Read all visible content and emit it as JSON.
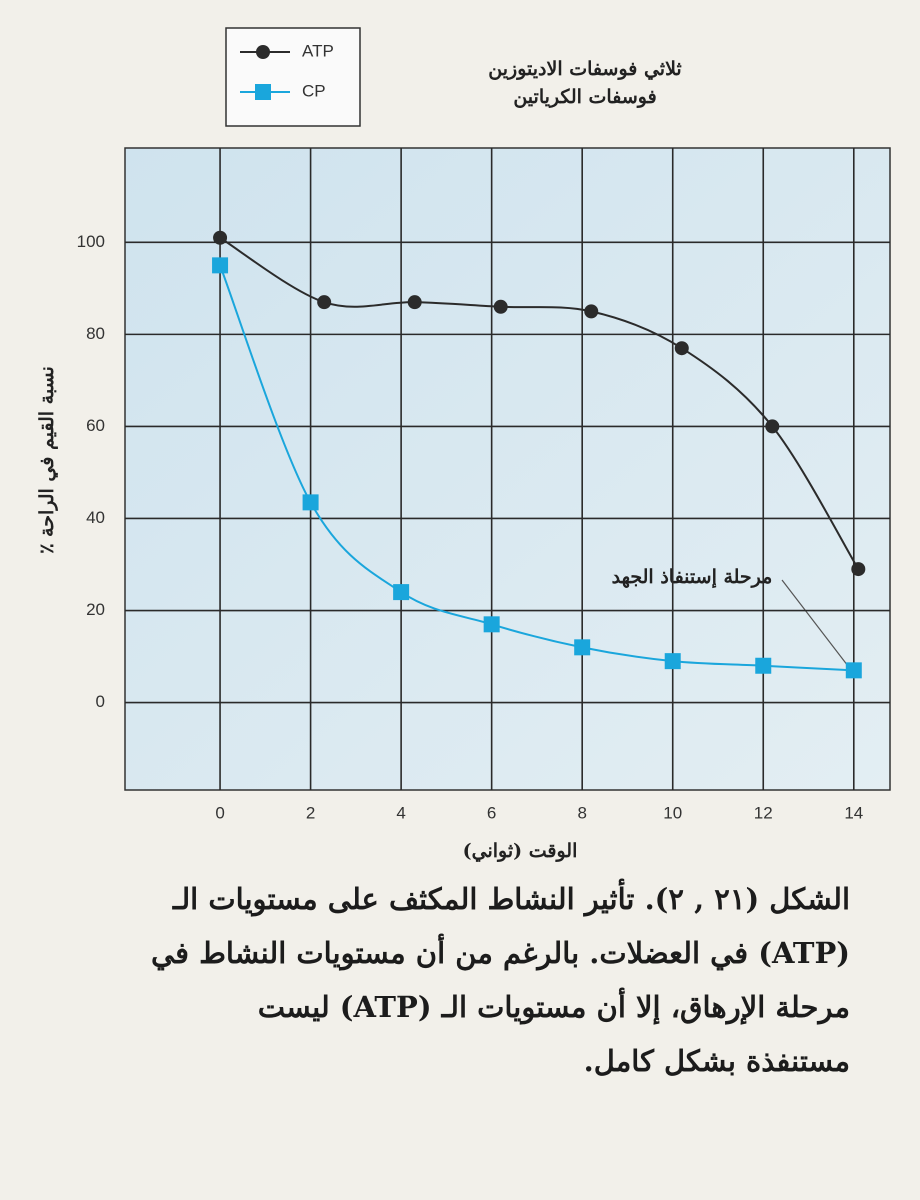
{
  "chart_data": {
    "type": "line",
    "legend_title_lines": [
      "ثلاثي فوسفات الاديتوزين",
      "فوسفات الكرياتين"
    ],
    "y_label": "٪ نسبة القيم في الراحة",
    "x_label": "الوقت (ثواني)",
    "annotation": "مرحلة إستنفاذ الجهد",
    "xlim": [
      -2.1,
      14.8
    ],
    "ylim": [
      -19,
      120.5
    ],
    "xticks": [
      0,
      2,
      4,
      6,
      8,
      10,
      12,
      14
    ],
    "yticks": [
      0,
      20,
      40,
      60,
      80,
      100
    ],
    "grid": true,
    "series": [
      {
        "name": "ATP",
        "color": "#2b2b2b",
        "marker": "circle",
        "x": [
          0,
          2.3,
          4.3,
          6.2,
          8.2,
          10.2,
          12.2,
          14.1
        ],
        "values": [
          101,
          87,
          87,
          86,
          85,
          77,
          60,
          29
        ]
      },
      {
        "name": "CP",
        "color": "#1aa6dc",
        "marker": "square",
        "x": [
          0,
          2,
          4,
          6,
          8,
          10,
          12,
          14
        ],
        "values": [
          95,
          43.5,
          24,
          17,
          12,
          9,
          8,
          7
        ]
      }
    ]
  },
  "caption": {
    "lines": [
      "الشكل (٢١ , ٢). تأثير النشاط المكثف على مستويات الـ",
      "(ATP) في العضلات. بالرغم من أن مستويات النشاط في",
      "مرحلة الإرهاق، إلا أن مستويات الـ (ATP) ليست",
      "مستنفذة بشكل كامل."
    ]
  }
}
